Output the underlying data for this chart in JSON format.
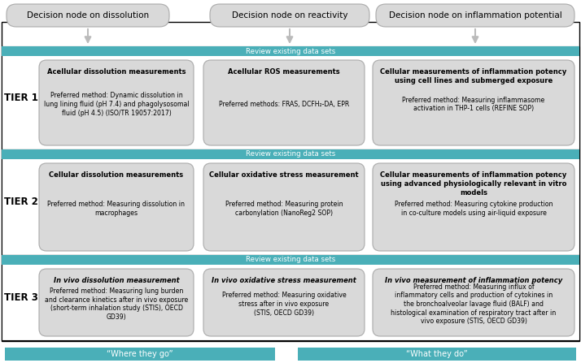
{
  "bg_color": "#ffffff",
  "teal_color": "#4aafb8",
  "gray_box_color": "#d9d9d9",
  "gray_box_edge": "#aaaaaa",
  "black": "#000000",
  "white": "#ffffff",
  "arrow_color": "#bbbbbb",
  "top_nodes": [
    "Decision node on dissolution",
    "Decision node on reactivity",
    "Decision node on inflammation potential"
  ],
  "review_label": "Review existing data sets",
  "tier_labels": [
    "TIER 1",
    "TIER 2",
    "TIER 3"
  ],
  "tier1_boxes": [
    {
      "title": "Acellular dissolution measurements",
      "body": "Preferred method: Dynamic dissolution in\nlung lining fluid (pH 7.4) and phagolysosomal\nfluid (pH 4.5) (ISO/TR 19057:2017)"
    },
    {
      "title": "Acellular ROS measurements",
      "body": "Preferred methods: FRAS, DCFH₂-DA, EPR"
    },
    {
      "title": "Cellular measurements of inflammation potency\nusing cell lines and submerged exposure",
      "body": "Preferred method: Measuring inflammasome\nactivation in THP-1 cells (REFINE SOP)"
    }
  ],
  "tier2_boxes": [
    {
      "title": "Cellular dissolution measurements",
      "body": "Preferred method: Measuring dissolution in\nmacrophages"
    },
    {
      "title": "Cellular oxidative stress measurement",
      "body": "Preferred method: Measuring protein\ncarbonylation (NanoReg2 SOP)"
    },
    {
      "title": "Cellular measurements of inflammation potency\nusing advanced physiologically relevant in vitro\nmodels",
      "body": "Preferred method: Measuring cytokine production\nin co-culture models using air-liquid exposure"
    }
  ],
  "tier3_boxes": [
    {
      "title": "In vivo dissolution measurement",
      "title_italic": true,
      "body": "Preferred method: Measuring lung burden\nand clearance kinetics after in vivo exposure\n(short-term inhalation study (STIS), OECD\nGD39)"
    },
    {
      "title": "In vivo oxidative stress measurement",
      "title_italic": true,
      "body": "Preferred method: Measuring oxidative\nstress after in vivo exposure\n(STIS, OECD GD39)"
    },
    {
      "title": "In vivo measurement of inflammation potency",
      "title_italic": true,
      "body": "Preferred method: Measuring influx of\ninflammatory cells and production of cytokines in\nthe bronchoalveolar lavage fluid (BALF) and\nhistological examination of respiratory tract after in\nvivo exposure (STIS, OECD GD39)"
    }
  ],
  "bottom_labels": [
    "“Where they go”",
    "“What they do”"
  ]
}
